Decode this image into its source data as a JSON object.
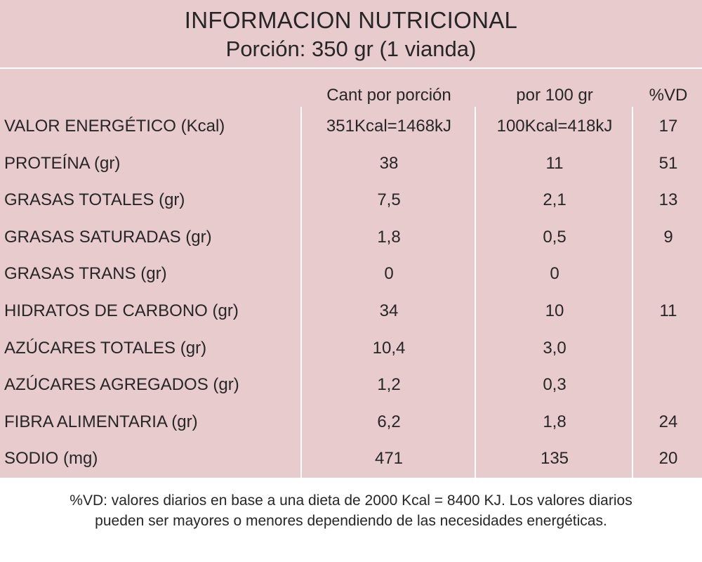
{
  "header": {
    "title": "INFORMACION NUTRICIONAL",
    "portion": "Porción: 350 gr (1 vianda)"
  },
  "columns": [
    "",
    "Cant por porción",
    "por 100 gr",
    "%VD"
  ],
  "rows": [
    {
      "nutrient": "VALOR ENERGÉTICO  (Kcal)",
      "per_portion": "351Kcal=1468kJ",
      "per_100g": "100Kcal=418kJ",
      "vd": "17"
    },
    {
      "nutrient": "PROTEÍNA (gr)",
      "per_portion": "38",
      "per_100g": "11",
      "vd": "51"
    },
    {
      "nutrient": "GRASAS TOTALES (gr)",
      "per_portion": "7,5",
      "per_100g": "2,1",
      "vd": "13"
    },
    {
      "nutrient": "GRASAS SATURADAS (gr)",
      "per_portion": "1,8",
      "per_100g": "0,5",
      "vd": "9"
    },
    {
      "nutrient": "GRASAS TRANS (gr)",
      "per_portion": "0",
      "per_100g": "0",
      "vd": ""
    },
    {
      "nutrient": "HIDRATOS DE CARBONO (gr)",
      "per_portion": "34",
      "per_100g": "10",
      "vd": "11"
    },
    {
      "nutrient": "AZÚCARES TOTALES (gr)",
      "per_portion": "10,4",
      "per_100g": "3,0",
      "vd": ""
    },
    {
      "nutrient": "AZÚCARES AGREGADOS (gr)",
      "per_portion": "1,2",
      "per_100g": "0,3",
      "vd": ""
    },
    {
      "nutrient": "FIBRA ALIMENTARIA (gr)",
      "per_portion": "6,2",
      "per_100g": "1,8",
      "vd": "24"
    },
    {
      "nutrient": "SODIO (mg)",
      "per_portion": "471",
      "per_100g": "135",
      "vd": "20"
    }
  ],
  "footnote": {
    "line1": "%VD:  valores diarios en base a una dieta de 2000 Kcal = 8400 KJ. Los valores diarios",
    "line2": "pueden ser mayores o menores dependiendo de las necesidades energéticas."
  },
  "colors": {
    "background": "#e8cbcc",
    "grid": "#ffffff",
    "text": "#262626"
  }
}
